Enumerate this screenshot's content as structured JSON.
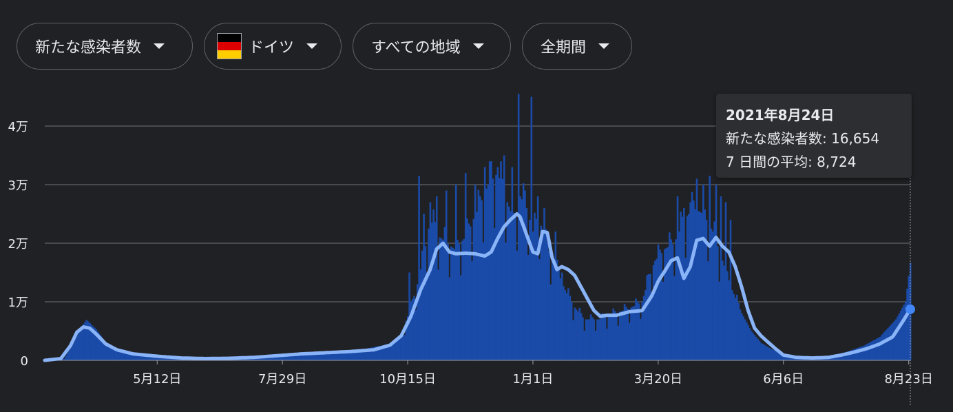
{
  "filters": [
    {
      "label": "新たな感染者数"
    },
    {
      "label": "ドイツ",
      "flag_colors": [
        "#000000",
        "#dd0000",
        "#ffce00"
      ]
    },
    {
      "label": "すべての地域"
    },
    {
      "label": "全期間"
    }
  ],
  "tooltip": {
    "date": "2021年8月24日",
    "cases_label": "新たな感染者数: 16,654",
    "average_label": "7 日間の平均: 8,724"
  },
  "colors": {
    "background": "#202124",
    "bar": "#1a4ba8",
    "line": "#8ab4f8",
    "marker": "#4285f4",
    "grid": "#5f6368",
    "text": "#e8eaed"
  },
  "chart_data": {
    "type": "bar",
    "title": "",
    "xlabel": "",
    "ylabel": "",
    "ylim": [
      0,
      46000
    ],
    "yticks": [
      {
        "value": 0,
        "label": "0"
      },
      {
        "value": 10000,
        "label": "1万"
      },
      {
        "value": 20000,
        "label": "2万"
      },
      {
        "value": 30000,
        "label": "3万"
      },
      {
        "value": 40000,
        "label": "4万"
      }
    ],
    "xticks": [
      {
        "x": 70,
        "label": "5月12日"
      },
      {
        "x": 148,
        "label": "7月29日"
      },
      {
        "x": 226,
        "label": "10月15日"
      },
      {
        "x": 304,
        "label": "1月1日"
      },
      {
        "x": 382,
        "label": "3月20日"
      },
      {
        "x": 460,
        "label": "6月6日"
      },
      {
        "x": 538,
        "label": "8月23日"
      }
    ],
    "x_start": 0,
    "x_end": 539,
    "series": [
      {
        "name": "新たな感染者数",
        "kind": "bars",
        "keypoints": [
          [
            0,
            0
          ],
          [
            12,
            300
          ],
          [
            18,
            3000
          ],
          [
            22,
            5500
          ],
          [
            26,
            6900
          ],
          [
            32,
            5300
          ],
          [
            38,
            3000
          ],
          [
            45,
            1800
          ],
          [
            60,
            1000
          ],
          [
            80,
            600
          ],
          [
            100,
            400
          ],
          [
            120,
            450
          ],
          [
            140,
            600
          ],
          [
            160,
            900
          ],
          [
            180,
            1500
          ],
          [
            200,
            2000
          ],
          [
            215,
            2800
          ],
          [
            222,
            4500
          ],
          [
            228,
            9000
          ],
          [
            232,
            13000
          ],
          [
            236,
            18000
          ],
          [
            240,
            24000
          ],
          [
            246,
            21000
          ],
          [
            255,
            19000
          ],
          [
            262,
            21000
          ],
          [
            270,
            26000
          ],
          [
            276,
            30000
          ],
          [
            282,
            32000
          ],
          [
            288,
            27000
          ],
          [
            292,
            24000
          ],
          [
            296,
            28000
          ],
          [
            300,
            26000
          ],
          [
            304,
            22000
          ],
          [
            308,
            24000
          ],
          [
            312,
            20000
          ],
          [
            318,
            16000
          ],
          [
            324,
            12000
          ],
          [
            330,
            9000
          ],
          [
            336,
            7000
          ],
          [
            345,
            7000
          ],
          [
            355,
            8000
          ],
          [
            365,
            9000
          ],
          [
            372,
            10000
          ],
          [
            376,
            14000
          ],
          [
            380,
            17000
          ],
          [
            386,
            19000
          ],
          [
            392,
            20000
          ],
          [
            398,
            24000
          ],
          [
            404,
            26000
          ],
          [
            410,
            25000
          ],
          [
            416,
            22000
          ],
          [
            422,
            17000
          ],
          [
            428,
            12000
          ],
          [
            434,
            8000
          ],
          [
            440,
            5000
          ],
          [
            446,
            3000
          ],
          [
            452,
            2000
          ],
          [
            460,
            1000
          ],
          [
            470,
            500
          ],
          [
            480,
            600
          ],
          [
            490,
            800
          ],
          [
            500,
            1500
          ],
          [
            510,
            2500
          ],
          [
            520,
            4000
          ],
          [
            530,
            7000
          ],
          [
            536,
            10000
          ],
          [
            539,
            16654
          ]
        ],
        "peaks": [
          [
            227,
            15000
          ],
          [
            233,
            31500
          ],
          [
            236,
            25000
          ],
          [
            240,
            27000
          ],
          [
            244,
            28000
          ],
          [
            250,
            29000
          ],
          [
            256,
            30000
          ],
          [
            262,
            32000
          ],
          [
            268,
            30000
          ],
          [
            274,
            33000
          ],
          [
            278,
            34000
          ],
          [
            282,
            33000
          ],
          [
            286,
            35000
          ],
          [
            291,
            33000
          ],
          [
            295,
            45500
          ],
          [
            299,
            29000
          ],
          [
            303,
            45000
          ],
          [
            307,
            28000
          ],
          [
            311,
            26000
          ],
          [
            318,
            22000
          ],
          [
            322,
            15000
          ],
          [
            394,
            28000
          ],
          [
            398,
            26000
          ],
          [
            402,
            27000
          ],
          [
            406,
            31000
          ],
          [
            410,
            30000
          ],
          [
            414,
            31500
          ],
          [
            418,
            30000
          ],
          [
            421,
            28000
          ],
          [
            424,
            27000
          ],
          [
            427,
            24000
          ]
        ]
      },
      {
        "name": "7 日間の平均",
        "kind": "line",
        "keypoints": [
          [
            0,
            0
          ],
          [
            10,
            300
          ],
          [
            16,
            2500
          ],
          [
            20,
            4800
          ],
          [
            24,
            5700
          ],
          [
            28,
            5500
          ],
          [
            32,
            4500
          ],
          [
            38,
            2800
          ],
          [
            45,
            1800
          ],
          [
            55,
            1100
          ],
          [
            70,
            700
          ],
          [
            85,
            400
          ],
          [
            100,
            300
          ],
          [
            115,
            350
          ],
          [
            130,
            500
          ],
          [
            145,
            800
          ],
          [
            160,
            1100
          ],
          [
            175,
            1300
          ],
          [
            190,
            1500
          ],
          [
            205,
            1800
          ],
          [
            215,
            2600
          ],
          [
            222,
            4200
          ],
          [
            228,
            7500
          ],
          [
            234,
            12000
          ],
          [
            240,
            15500
          ],
          [
            244,
            19000
          ],
          [
            248,
            20000
          ],
          [
            252,
            18500
          ],
          [
            256,
            18200
          ],
          [
            262,
            18300
          ],
          [
            268,
            18200
          ],
          [
            274,
            17800
          ],
          [
            278,
            18500
          ],
          [
            282,
            20800
          ],
          [
            286,
            22800
          ],
          [
            290,
            24000
          ],
          [
            294,
            25000
          ],
          [
            296,
            24500
          ],
          [
            300,
            21500
          ],
          [
            304,
            18500
          ],
          [
            307,
            18200
          ],
          [
            310,
            22000
          ],
          [
            313,
            21800
          ],
          [
            316,
            17500
          ],
          [
            319,
            15500
          ],
          [
            322,
            16000
          ],
          [
            326,
            15500
          ],
          [
            330,
            14500
          ],
          [
            334,
            12500
          ],
          [
            338,
            10500
          ],
          [
            342,
            8500
          ],
          [
            346,
            7500
          ],
          [
            350,
            7700
          ],
          [
            356,
            7700
          ],
          [
            364,
            8300
          ],
          [
            372,
            8500
          ],
          [
            378,
            11000
          ],
          [
            382,
            13500
          ],
          [
            386,
            15200
          ],
          [
            390,
            17000
          ],
          [
            394,
            17500
          ],
          [
            398,
            14000
          ],
          [
            402,
            16000
          ],
          [
            406,
            20500
          ],
          [
            410,
            20800
          ],
          [
            414,
            19500
          ],
          [
            418,
            21000
          ],
          [
            422,
            19500
          ],
          [
            426,
            18500
          ],
          [
            430,
            16000
          ],
          [
            434,
            12500
          ],
          [
            438,
            8500
          ],
          [
            442,
            5500
          ],
          [
            446,
            4200
          ],
          [
            450,
            3200
          ],
          [
            455,
            2000
          ],
          [
            460,
            900
          ],
          [
            468,
            500
          ],
          [
            478,
            400
          ],
          [
            488,
            500
          ],
          [
            496,
            900
          ],
          [
            504,
            1400
          ],
          [
            512,
            2000
          ],
          [
            520,
            2800
          ],
          [
            528,
            4000
          ],
          [
            534,
            6500
          ],
          [
            539,
            8724
          ]
        ]
      }
    ],
    "highlight": {
      "x": 539,
      "value": 8724
    },
    "legend": "none",
    "grid": true
  }
}
